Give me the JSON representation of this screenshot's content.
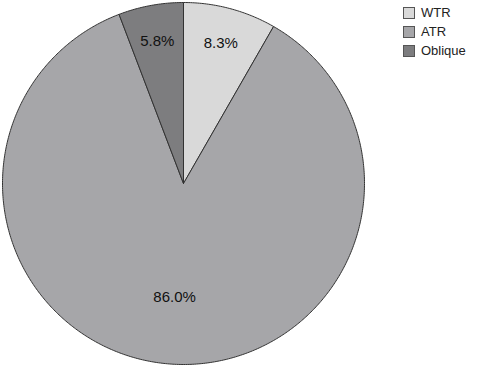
{
  "chart_data": {
    "type": "pie",
    "categories": [
      "WTR",
      "ATR",
      "Oblique"
    ],
    "values": [
      8.3,
      86.0,
      5.8
    ],
    "value_labels": [
      "8.3%",
      "86.0%",
      "5.8%"
    ],
    "colors": [
      "#d9d9d9",
      "#a6a6a9",
      "#7d7d7f"
    ],
    "data_labels": true,
    "legend": "top-right"
  }
}
